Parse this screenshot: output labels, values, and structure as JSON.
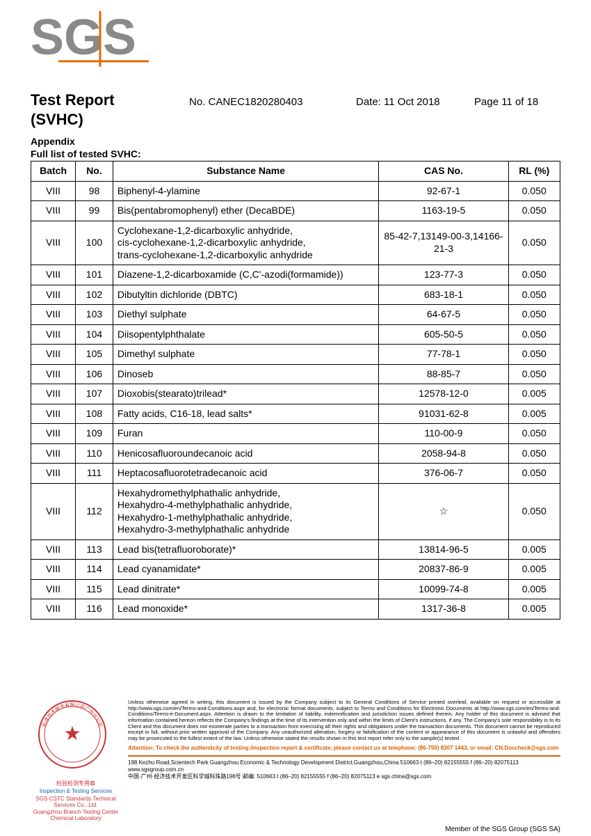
{
  "logo": {
    "text": "SGS",
    "fill": "#8a8a8a",
    "accent": "#e06a00"
  },
  "header": {
    "title": "Test Report",
    "subtitle": "(SVHC)",
    "report_no_label": "No. ",
    "report_no": "CANEC1820280403",
    "date_label": "Date: ",
    "date": "11 Oct 2018",
    "page_label": "Page ",
    "page": "11 of 18"
  },
  "section": {
    "appendix": "Appendix",
    "listhead": "Full list of tested SVHC:"
  },
  "table": {
    "columns": [
      "Batch",
      "No.",
      "Substance Name",
      "CAS No.",
      "RL (%)"
    ],
    "col_align": [
      "center",
      "center",
      "left",
      "center",
      "center"
    ],
    "rows": [
      [
        "VIII",
        "98",
        "Biphenyl-4-ylamine",
        "92-67-1",
        "0.050"
      ],
      [
        "VIII",
        "99",
        "Bis(pentabromophenyl) ether (DecaBDE)",
        "1163-19-5",
        "0.050"
      ],
      [
        "VIII",
        "100",
        "Cyclohexane-1,2-dicarboxylic anhydride,\ncis-cyclohexane-1,2-dicarboxylic anhydride,\ntrans-cyclohexane-1,2-dicarboxylic anhydride",
        "85-42-7,13149-00-3,14166-21-3",
        "0.050"
      ],
      [
        "VIII",
        "101",
        "Diazene-1,2-dicarboxamide (C,C'-azodi(formamide))",
        "123-77-3",
        "0.050"
      ],
      [
        "VIII",
        "102",
        "Dibutyltin dichloride (DBTC)",
        "683-18-1",
        "0.050"
      ],
      [
        "VIII",
        "103",
        "Diethyl sulphate",
        "64-67-5",
        "0.050"
      ],
      [
        "VIII",
        "104",
        "Diisopentylphthalate",
        "605-50-5",
        "0.050"
      ],
      [
        "VIII",
        "105",
        "Dimethyl sulphate",
        "77-78-1",
        "0.050"
      ],
      [
        "VIII",
        "106",
        "Dinoseb",
        "88-85-7",
        "0.050"
      ],
      [
        "VIII",
        "107",
        "Dioxobis(stearato)trilead*",
        "12578-12-0",
        "0.005"
      ],
      [
        "VIII",
        "108",
        "Fatty acids, C16-18, lead salts*",
        "91031-62-8",
        "0.005"
      ],
      [
        "VIII",
        "109",
        "Furan",
        "110-00-9",
        "0.050"
      ],
      [
        "VIII",
        "110",
        "Henicosafluoroundecanoic acid",
        "2058-94-8",
        "0.050"
      ],
      [
        "VIII",
        "111",
        "Heptacosafluorotetradecanoic acid",
        "376-06-7",
        "0.050"
      ],
      [
        "VIII",
        "112",
        "Hexahydromethylphathalic anhydride,\nHexahydro-4-methylphathalic anhydride,\nHexahydro-1-methylphathalic anhydride,\nHexahydro-3-methylphathalic anhydride",
        "☆",
        "0.050"
      ],
      [
        "VIII",
        "113",
        "Lead bis(tetrafluoroborate)*",
        "13814-96-5",
        "0.005"
      ],
      [
        "VIII",
        "114",
        "Lead cyanamidate*",
        "20837-86-9",
        "0.005"
      ],
      [
        "VIII",
        "115",
        "Lead dinitrate*",
        "10099-74-8",
        "0.005"
      ],
      [
        "VIII",
        "116",
        "Lead monoxide*",
        "1317-36-8",
        "0.005"
      ]
    ]
  },
  "footer": {
    "seal_line1": "检验检测专用章",
    "seal_line2": "Inspection & Testing Services",
    "seal_company1": "SGS-CSTC Standards Technical Services Co., Ltd.",
    "seal_company2": "Guangzhou Branch Testing Center Chemical Laboratory",
    "disclaimer": "Unless otherwise agreed in writing, this document is issued by the Company subject to its General Conditions of Service printed overleaf, available on request or accessible at http://www.sgs.com/en/Terms-and-Conditions.aspx and, for electronic format documents, subject to Terms and Conditions for Electronic Documents at http://www.sgs.com/en/Terms-and-Conditions/Terms-e-Document.aspx. Attention is drawn to the limitation of liability, indemnification and jurisdiction issues defined therein. Any holder of this document is advised that information contained hereon reflects the Company's findings at the time of its intervention only and within the limits of Client's instructions, if any. The Company's sole responsibility is to its Client and this document does not exonerate parties to a transaction from exercising all their rights and obligations under the transaction documents. This document cannot be reproduced except in full, without prior written approval of the Company. Any unauthorized alteration, forgery or falsification of the content or appearance of this document is unlawful and offenders may be prosecuted to the fullest extent of the law. Unless otherwise stated the results shown in this test report refer only to the sample(s) tested .",
    "attention": "Attention: To check the authenticity of testing /inspection report & certificate, please contact us at telephone: (86-755) 8307 1443, or email: CN.Doccheck@sgs.com",
    "addr_en": "198 Kezhu Road,Scientech Park Guangzhou Economic & Technology Development District,Guangzhou,China 510663   t (86–20) 82155555   f (86–20) 82075113   www.sgsgroup.com.cn",
    "addr_cn": "中国·广州·经济技术开发区科学城科珠路198号            邮编: 510663   t (86–20) 82155555   f (86–20) 82075113   e sgs.china@sgs.com",
    "member": "Member of the SGS Group (SGS SA)"
  },
  "colors": {
    "text": "#000000",
    "logo_gray": "#8a8a8a",
    "accent_orange": "#e06a00",
    "seal_red": "#cc3333"
  }
}
